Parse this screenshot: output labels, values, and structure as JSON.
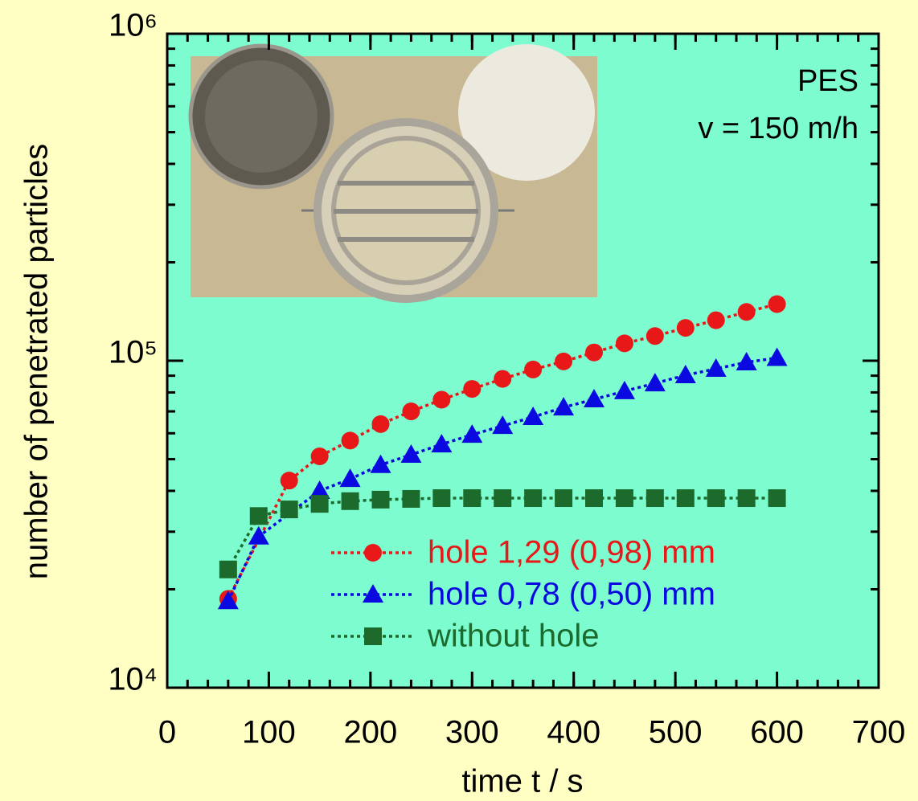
{
  "chart_data": {
    "type": "line",
    "xlabel": "time  t / s",
    "ylabel": "number of penetrated particles",
    "annotations": [
      "PES",
      "v = 150 m/h"
    ],
    "xlim": [
      0,
      700
    ],
    "xticks": [
      0,
      100,
      200,
      300,
      400,
      500,
      600,
      700
    ],
    "ylim": [
      10000,
      1000000
    ],
    "yticks": [
      {
        "value": 10000,
        "label": "10⁴"
      },
      {
        "value": 100000,
        "label": "10⁵"
      },
      {
        "value": 1000000,
        "label": "10⁶"
      }
    ],
    "log_y": true,
    "minor_ticks": true,
    "legend": "lower right",
    "series": [
      {
        "name": "hole 1,29 (0,98) mm",
        "color": "#e81818",
        "marker": "circle",
        "x": [
          60,
          120,
          150,
          180,
          210,
          240,
          270,
          300,
          330,
          360,
          390,
          420,
          450,
          480,
          510,
          540,
          570,
          600
        ],
        "values": [
          18700,
          43000,
          51000,
          57000,
          64000,
          70000,
          76000,
          82000,
          88000,
          94000,
          99500,
          106000,
          113000,
          119000,
          126000,
          133000,
          141000,
          149000
        ]
      },
      {
        "name": "hole 0,78 (0,50) mm",
        "color": "#0a0ae0",
        "marker": "triangle",
        "x": [
          60,
          90,
          150,
          180,
          210,
          240,
          270,
          300,
          330,
          360,
          390,
          420,
          450,
          480,
          510,
          540,
          570,
          600
        ],
        "values": [
          18400,
          29000,
          40000,
          43500,
          48000,
          51600,
          55500,
          59400,
          63200,
          67300,
          72000,
          76200,
          80700,
          85300,
          90300,
          94500,
          98900,
          102000
        ]
      },
      {
        "name": "without hole",
        "color": "#1c6b2c",
        "marker": "square",
        "x": [
          60,
          90,
          120,
          150,
          180,
          210,
          240,
          270,
          300,
          330,
          360,
          390,
          420,
          450,
          480,
          510,
          540,
          570,
          600
        ],
        "values": [
          23000,
          33500,
          35100,
          36500,
          37200,
          37600,
          37800,
          38000,
          38000,
          38000,
          38000,
          38000,
          38000,
          38000,
          38000,
          38000,
          38000,
          38000,
          38000
        ]
      }
    ]
  }
}
